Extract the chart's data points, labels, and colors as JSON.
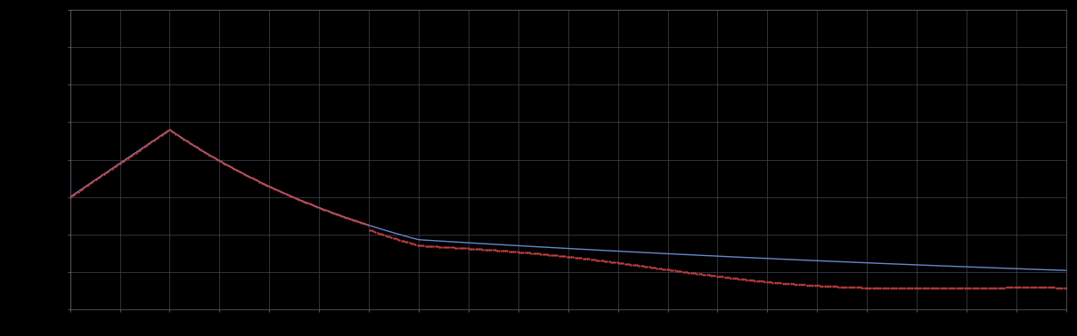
{
  "background_color": "#000000",
  "plot_bg_color": "#000000",
  "grid_color": "#444455",
  "line1_color": "#6688cc",
  "line2_color": "#cc4444",
  "axis_color": "#666677",
  "tick_color": "#777788",
  "figsize": [
    12.09,
    3.78
  ],
  "dpi": 100,
  "xlim": [
    0,
    20
  ],
  "ylim": [
    0,
    8
  ],
  "xticks_major": 21,
  "yticks_major": 9,
  "n_points": 500
}
